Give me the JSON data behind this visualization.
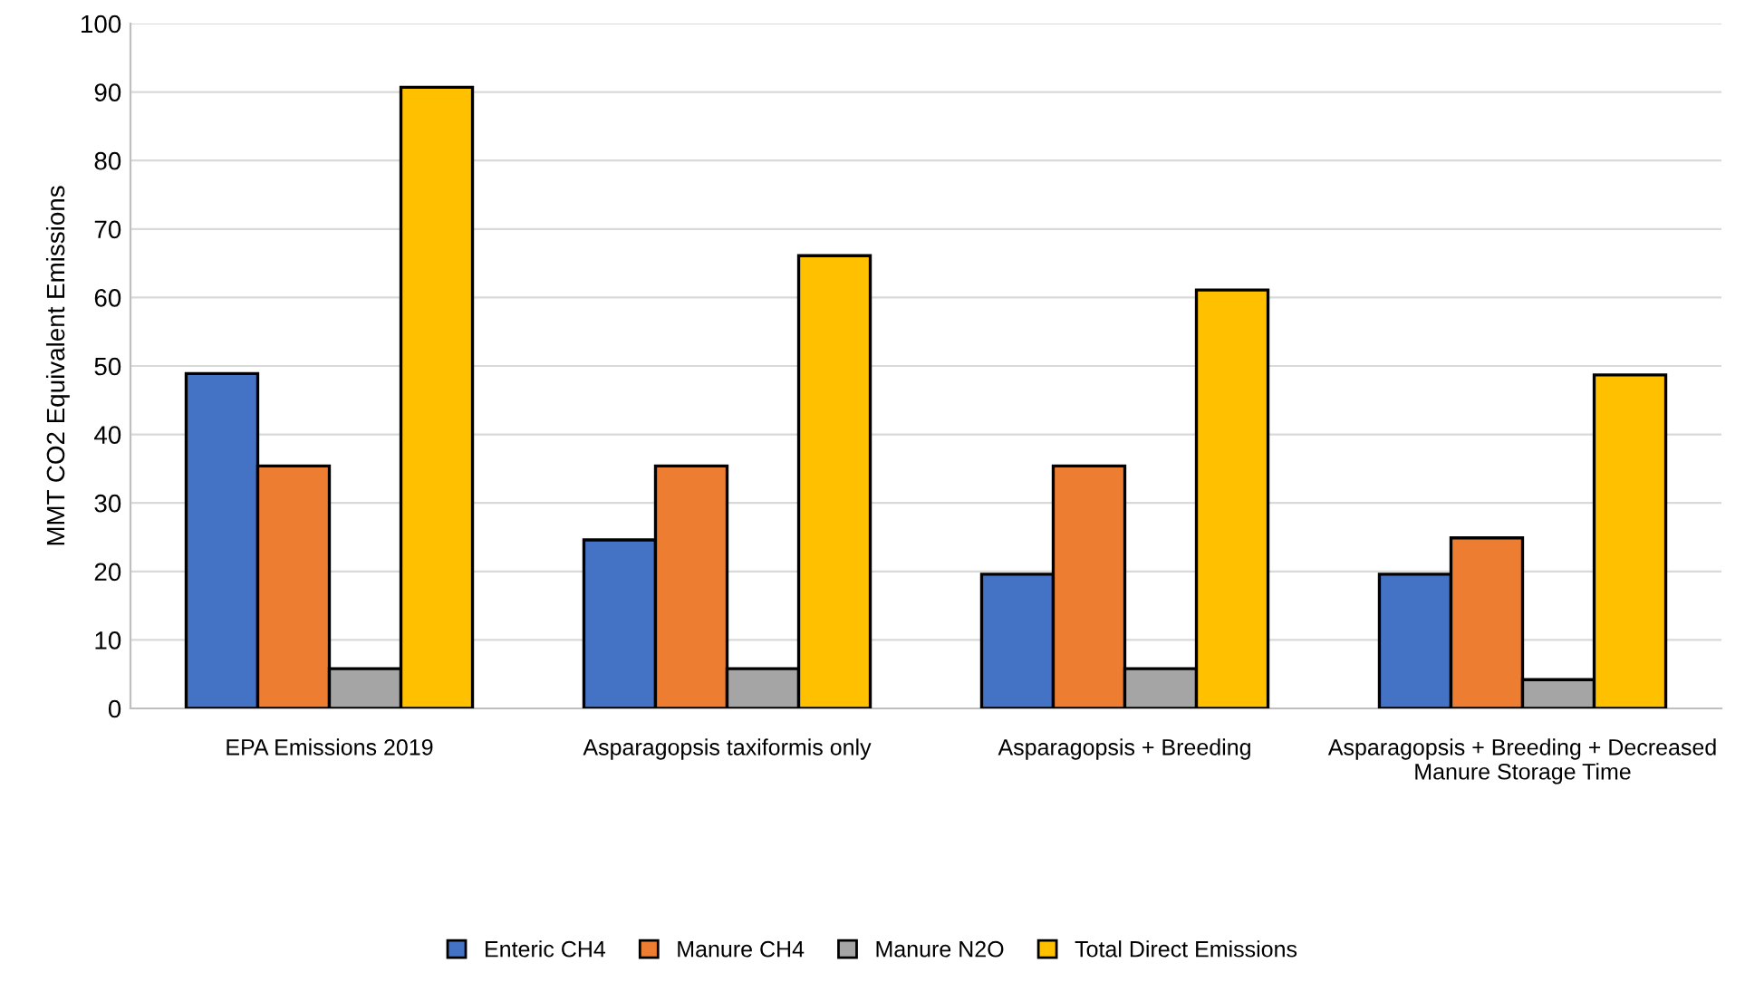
{
  "chart_data": {
    "type": "bar",
    "ylabel": "MMT CO2 Equivalent Emissions",
    "categories": [
      "EPA Emissions 2019",
      "Asparagopsis taxiformis only",
      "Asparagopsis + Breeding",
      "Asparagopsis + Breeding + Decreased Manure Storage Time"
    ],
    "series": [
      {
        "name": "Enteric CH4",
        "color": "#4472c4",
        "values": [
          48.9,
          24.6,
          19.6,
          19.6
        ]
      },
      {
        "name": "Manure CH4",
        "color": "#ed7d31",
        "values": [
          35.4,
          35.4,
          35.4,
          24.9
        ]
      },
      {
        "name": "Manure N2O",
        "color": "#a5a5a5",
        "values": [
          5.8,
          5.8,
          5.8,
          4.2
        ]
      },
      {
        "name": "Total Direct Emissions",
        "color": "#ffc000",
        "values": [
          90.7,
          66.1,
          61.1,
          48.7
        ]
      }
    ],
    "ylim": [
      0,
      100
    ],
    "yticks": [
      0,
      10,
      20,
      30,
      40,
      50,
      60,
      70,
      80,
      90,
      100
    ],
    "grid": "y",
    "legend": "bottom"
  }
}
